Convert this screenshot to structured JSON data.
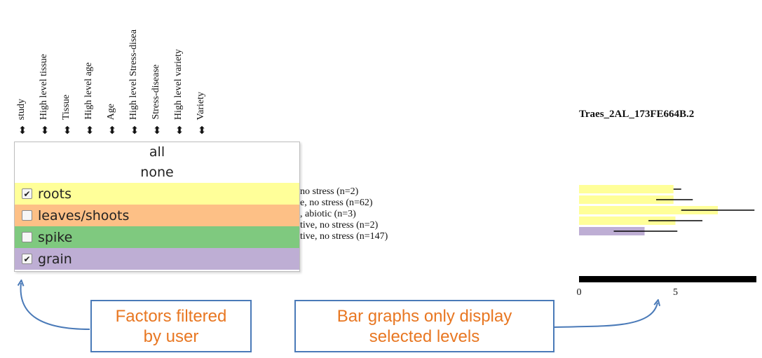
{
  "columns": [
    {
      "label": "study"
    },
    {
      "label": "High level tissue"
    },
    {
      "label": "Tissue"
    },
    {
      "label": "High level age"
    },
    {
      "label": "Age"
    },
    {
      "label": "High level Stress-disea"
    },
    {
      "label": "Stress-disease"
    },
    {
      "label": "High level variety"
    },
    {
      "label": "Variety"
    }
  ],
  "sort_arrow_glyph": "⬍",
  "filter": {
    "all_label": "all",
    "none_label": "none",
    "options": [
      {
        "label": "roots",
        "checked": true,
        "color": "#ffff99"
      },
      {
        "label": "leaves/shoots",
        "checked": false,
        "color": "#fdc086"
      },
      {
        "label": "spike",
        "checked": false,
        "color": "#7fc97f"
      },
      {
        "label": "grain",
        "checked": true,
        "color": "#beaed4"
      }
    ],
    "checkmark": "✔"
  },
  "legend_lines": [
    "no stress (n=2)",
    "e, no stress (n=62)",
    ", abiotic (n=3)",
    "tive, no stress (n=2)",
    "tive, no stress (n=147)"
  ],
  "chart_data": {
    "type": "bar",
    "orientation": "horizontal",
    "title": "Traes_2AL_173FE664B.2",
    "xlim": [
      0,
      9
    ],
    "xticks": [
      "0",
      "5"
    ],
    "bars": [
      {
        "value": 4.9,
        "err_low": 4.9,
        "err_high": 5.3,
        "color": "#ffff99"
      },
      {
        "value": 4.9,
        "err_low": 4.0,
        "err_high": 5.9,
        "color": "#ffff99"
      },
      {
        "value": 7.2,
        "err_low": 5.3,
        "err_high": 9.1,
        "color": "#ffff99"
      },
      {
        "value": 5.0,
        "err_low": 3.6,
        "err_high": 6.4,
        "color": "#ffff99"
      },
      {
        "value": 3.4,
        "err_low": 1.8,
        "err_high": 5.1,
        "color": "#beaed4"
      }
    ]
  },
  "callouts": {
    "left_text_1": "Factors filtered",
    "left_text_2": "by user",
    "right_text_1": "Bar graphs only display",
    "right_text_2": "selected levels"
  }
}
